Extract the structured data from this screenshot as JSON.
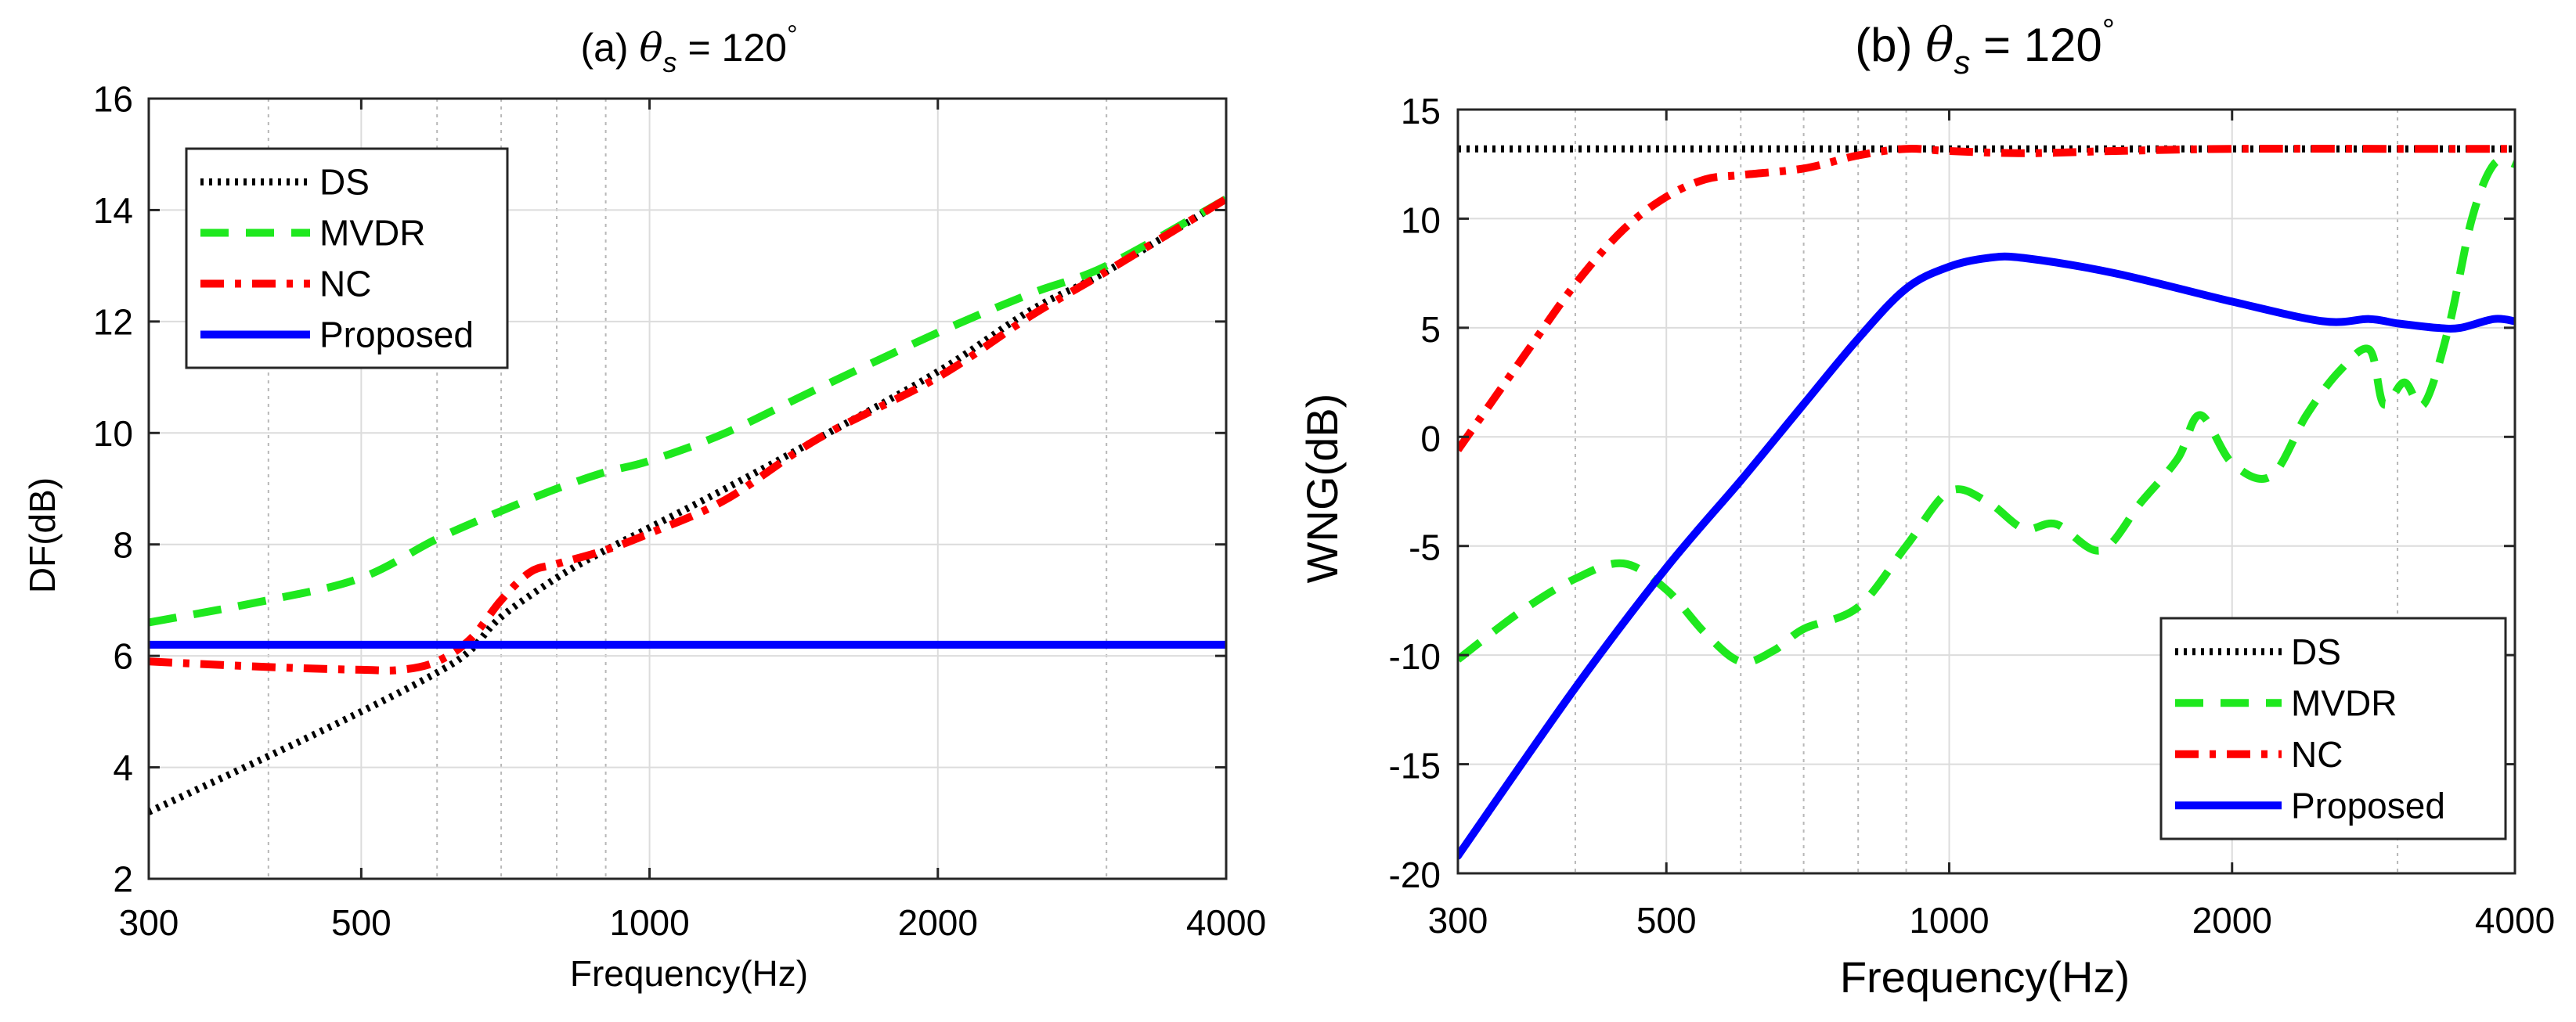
{
  "chart_data": [
    {
      "type": "line",
      "title_prefix": "(a) ",
      "title_symbol": "θ",
      "title_sub": "s",
      "title_suffix": " = 120",
      "title_degree": "°",
      "xlabel": "Frequency(Hz)",
      "ylabel": "DF(dB)",
      "xscale": "log",
      "xlim": [
        300,
        4000
      ],
      "ylim": [
        2,
        16
      ],
      "xticks": [
        300,
        500,
        1000,
        2000,
        4000
      ],
      "xtick_labels": [
        "300",
        "500",
        "1000",
        "2000",
        "4000"
      ],
      "yticks": [
        2,
        4,
        6,
        8,
        10,
        12,
        14,
        16
      ],
      "ytick_labels": [
        "2",
        "4",
        "6",
        "8",
        "10",
        "12",
        "14",
        "16"
      ],
      "grid": true,
      "legend_position": "top-left",
      "series": [
        {
          "name": "DS",
          "color": "#000000",
          "style": "dotted",
          "x": [
            300,
            400,
            500,
            600,
            650,
            700,
            800,
            900,
            1000,
            1200,
            1500,
            2000,
            2500,
            3000,
            4000
          ],
          "y": [
            3.2,
            4.2,
            5.0,
            5.7,
            6.1,
            6.7,
            7.4,
            7.9,
            8.3,
            9.0,
            9.9,
            11.1,
            12.2,
            12.9,
            14.2
          ]
        },
        {
          "name": "MVDR",
          "color": "#1ee81e",
          "style": "dashed",
          "x": [
            300,
            400,
            500,
            600,
            700,
            800,
            900,
            1000,
            1200,
            1500,
            2000,
            2500,
            3000,
            4000
          ],
          "y": [
            6.6,
            7.0,
            7.4,
            8.1,
            8.6,
            9.0,
            9.3,
            9.5,
            10.0,
            10.8,
            11.8,
            12.5,
            13.0,
            14.2
          ]
        },
        {
          "name": "NC",
          "color": "#ff0000",
          "style": "dashdot",
          "x": [
            300,
            400,
            500,
            550,
            600,
            650,
            700,
            750,
            800,
            900,
            1000,
            1200,
            1500,
            2000,
            2500,
            3000,
            4000
          ],
          "y": [
            5.9,
            5.8,
            5.75,
            5.75,
            5.9,
            6.3,
            7.0,
            7.5,
            7.65,
            7.9,
            8.2,
            8.8,
            9.9,
            11.0,
            12.1,
            12.9,
            14.2
          ]
        },
        {
          "name": "Proposed",
          "color": "#0000ff",
          "style": "solid",
          "x": [
            300,
            4000
          ],
          "y": [
            6.2,
            6.2
          ]
        }
      ]
    },
    {
      "type": "line",
      "title_prefix": "(b) ",
      "title_symbol": "θ",
      "title_sub": "s",
      "title_suffix": " = 120",
      "title_degree": "°",
      "xlabel": "Frequency(Hz)",
      "ylabel": "WNG(dB)",
      "xscale": "log",
      "xlim": [
        300,
        4000
      ],
      "ylim": [
        -20,
        15
      ],
      "xticks": [
        300,
        500,
        1000,
        2000,
        4000
      ],
      "xtick_labels": [
        "300",
        "500",
        "1000",
        "2000",
        "4000"
      ],
      "yticks": [
        -20,
        -15,
        -10,
        -5,
        0,
        5,
        10,
        15
      ],
      "ytick_labels": [
        "-20",
        "-15",
        "-10",
        "-5",
        "0",
        "5",
        "10",
        "15"
      ],
      "grid": true,
      "legend_position": "bottom-right",
      "series": [
        {
          "name": "DS",
          "color": "#000000",
          "style": "dotted",
          "x": [
            300,
            4000
          ],
          "y": [
            13.2,
            13.2
          ]
        },
        {
          "name": "MVDR",
          "color": "#1ee81e",
          "style": "dashed",
          "x": [
            300,
            350,
            400,
            450,
            500,
            550,
            600,
            650,
            700,
            800,
            900,
            1000,
            1100,
            1200,
            1300,
            1450,
            1600,
            1750,
            1850,
            2000,
            2200,
            2400,
            2600,
            2800,
            2900,
            3050,
            3200,
            3400,
            3600,
            3800,
            4000
          ],
          "y": [
            -10.2,
            -8.0,
            -6.5,
            -5.8,
            -7.0,
            -9.0,
            -10.3,
            -9.8,
            -8.8,
            -7.8,
            -5.0,
            -2.5,
            -3.0,
            -4.2,
            -4.0,
            -5.2,
            -3.0,
            -1.0,
            1.0,
            -1.2,
            -1.8,
            1.0,
            3.0,
            4.0,
            1.5,
            2.5,
            1.5,
            5.0,
            10.0,
            12.5,
            12.5
          ]
        },
        {
          "name": "NC",
          "color": "#ff0000",
          "style": "dashdot",
          "x": [
            300,
            350,
            400,
            450,
            500,
            550,
            600,
            700,
            800,
            900,
            1000,
            1200,
            1500,
            2000,
            3000,
            4000
          ],
          "y": [
            -0.6,
            3.5,
            7.0,
            9.5,
            11.0,
            11.8,
            12.0,
            12.3,
            12.9,
            13.2,
            13.1,
            13.0,
            13.1,
            13.2,
            13.2,
            13.2
          ]
        },
        {
          "name": "Proposed",
          "color": "#0000ff",
          "style": "solid",
          "x": [
            300,
            400,
            500,
            600,
            700,
            800,
            900,
            1000,
            1100,
            1200,
            1500,
            2000,
            2500,
            2800,
            3000,
            3300,
            3500,
            3800,
            4000
          ],
          "y": [
            -19.2,
            -11.5,
            -6.0,
            -2.0,
            1.5,
            4.5,
            6.8,
            7.8,
            8.2,
            8.2,
            7.5,
            6.2,
            5.3,
            5.4,
            5.2,
            5.0,
            5.0,
            5.4,
            5.3
          ]
        }
      ]
    }
  ]
}
